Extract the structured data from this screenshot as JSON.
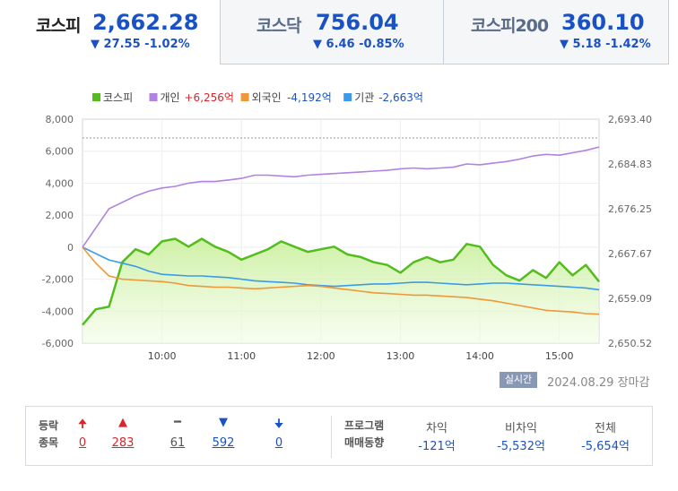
{
  "tabs": [
    {
      "name": "코스피",
      "value": "2,662.28",
      "change": "▼ 27.55 -1.02%"
    },
    {
      "name": "코스닥",
      "value": "756.04",
      "change": "▼ 6.46 -0.85%"
    },
    {
      "name": "코스피200",
      "value": "360.10",
      "change": "▼ 5.18 -1.42%"
    }
  ],
  "colors": {
    "kospi": "#52bd1c",
    "individual": "#b083e0",
    "foreign": "#f0973a",
    "institution": "#3b9be8",
    "down": "#1a52c4",
    "up": "#d9262b"
  },
  "chart_data": {
    "type": "line",
    "x_ticks": [
      "10:00",
      "11:00",
      "12:00",
      "13:00",
      "14:00",
      "15:00"
    ],
    "x_range": [
      "09:00",
      "15:30"
    ],
    "y_left_ticks": [
      "8,000",
      "6,000",
      "4,000",
      "2,000",
      "0",
      "-2,000",
      "-4,000",
      "-6,000"
    ],
    "y_left_range": [
      -6000,
      8000
    ],
    "y_right_ticks": [
      "2,693.40",
      "2,684.83",
      "2,676.25",
      "2,667.67",
      "2,659.09",
      "2,650.52"
    ],
    "y_right_range": [
      2650.52,
      2693.4
    ],
    "reference_line_right": 2689.8,
    "grid": true,
    "legend": [
      {
        "label": "코스피",
        "color": "#52bd1c"
      },
      {
        "label": "개인",
        "value": "+6,256억",
        "value_color": "#d9262b",
        "color": "#b083e0"
      },
      {
        "label": "외국인",
        "value": "-4,192억",
        "value_color": "#1a52c4",
        "color": "#f0973a"
      },
      {
        "label": "기관",
        "value": "-2,663억",
        "value_color": "#1a52c4",
        "color": "#3b9be8"
      }
    ],
    "series": [
      {
        "name": "코스피",
        "axis": "right",
        "x": [
          "09:00",
          "09:10",
          "09:20",
          "09:30",
          "09:40",
          "09:50",
          "10:00",
          "10:10",
          "10:20",
          "10:30",
          "10:40",
          "10:50",
          "11:00",
          "11:10",
          "11:20",
          "11:30",
          "11:40",
          "11:50",
          "12:00",
          "12:10",
          "12:20",
          "12:30",
          "12:40",
          "12:50",
          "13:00",
          "13:10",
          "13:20",
          "13:30",
          "13:40",
          "13:50",
          "14:00",
          "14:10",
          "14:20",
          "14:30",
          "14:40",
          "14:50",
          "15:00",
          "15:10",
          "15:20",
          "15:30"
        ],
        "values": [
          2654.0,
          2657.0,
          2657.5,
          2666.0,
          2668.5,
          2667.5,
          2670.0,
          2670.5,
          2669.0,
          2670.5,
          2669.0,
          2668.0,
          2666.5,
          2667.5,
          2668.5,
          2670.0,
          2669.0,
          2668.0,
          2668.5,
          2669.0,
          2667.5,
          2667.0,
          2666.0,
          2665.5,
          2664.0,
          2666.0,
          2667.0,
          2666.0,
          2666.5,
          2669.5,
          2669.0,
          2665.5,
          2663.5,
          2662.5,
          2664.5,
          2663.0,
          2666.0,
          2663.5,
          2665.5,
          2662.3
        ]
      },
      {
        "name": "개인",
        "axis": "left",
        "x": [
          "09:00",
          "09:10",
          "09:20",
          "09:30",
          "09:40",
          "09:50",
          "10:00",
          "10:10",
          "10:20",
          "10:30",
          "10:40",
          "10:50",
          "11:00",
          "11:10",
          "11:20",
          "11:30",
          "11:40",
          "11:50",
          "12:00",
          "12:10",
          "12:20",
          "12:30",
          "12:40",
          "12:50",
          "13:00",
          "13:10",
          "13:20",
          "13:30",
          "13:40",
          "13:50",
          "14:00",
          "14:10",
          "14:20",
          "14:30",
          "14:40",
          "14:50",
          "15:00",
          "15:10",
          "15:20",
          "15:30"
        ],
        "values": [
          0,
          1200,
          2400,
          2800,
          3200,
          3500,
          3700,
          3800,
          4000,
          4100,
          4100,
          4200,
          4300,
          4500,
          4500,
          4450,
          4400,
          4500,
          4550,
          4600,
          4650,
          4700,
          4750,
          4800,
          4900,
          4950,
          4900,
          4950,
          5000,
          5200,
          5150,
          5250,
          5350,
          5500,
          5700,
          5800,
          5750,
          5900,
          6050,
          6256
        ]
      },
      {
        "name": "외국인",
        "axis": "left",
        "x": [
          "09:00",
          "09:10",
          "09:20",
          "09:30",
          "09:40",
          "09:50",
          "10:00",
          "10:10",
          "10:20",
          "10:30",
          "10:40",
          "10:50",
          "11:00",
          "11:10",
          "11:20",
          "11:30",
          "11:40",
          "11:50",
          "12:00",
          "12:10",
          "12:20",
          "12:30",
          "12:40",
          "12:50",
          "13:00",
          "13:10",
          "13:20",
          "13:30",
          "13:40",
          "13:50",
          "14:00",
          "14:10",
          "14:20",
          "14:30",
          "14:40",
          "14:50",
          "15:00",
          "15:10",
          "15:20",
          "15:30"
        ],
        "values": [
          0,
          -1000,
          -1800,
          -2000,
          -2050,
          -2100,
          -2150,
          -2250,
          -2400,
          -2450,
          -2500,
          -2500,
          -2550,
          -2600,
          -2550,
          -2500,
          -2450,
          -2400,
          -2450,
          -2550,
          -2650,
          -2750,
          -2850,
          -2900,
          -2950,
          -3000,
          -3000,
          -3050,
          -3100,
          -3150,
          -3250,
          -3350,
          -3500,
          -3650,
          -3800,
          -3950,
          -4000,
          -4050,
          -4150,
          -4192
        ]
      },
      {
        "name": "기관",
        "axis": "left",
        "x": [
          "09:00",
          "09:10",
          "09:20",
          "09:30",
          "09:40",
          "09:50",
          "10:00",
          "10:10",
          "10:20",
          "10:30",
          "10:40",
          "10:50",
          "11:00",
          "11:10",
          "11:20",
          "11:30",
          "11:40",
          "11:50",
          "12:00",
          "12:10",
          "12:20",
          "12:30",
          "12:40",
          "12:50",
          "13:00",
          "13:10",
          "13:20",
          "13:30",
          "13:40",
          "13:50",
          "14:00",
          "14:10",
          "14:20",
          "14:30",
          "14:40",
          "14:50",
          "15:00",
          "15:10",
          "15:20",
          "15:30"
        ],
        "values": [
          0,
          -400,
          -800,
          -1000,
          -1200,
          -1500,
          -1700,
          -1750,
          -1800,
          -1800,
          -1850,
          -1900,
          -2000,
          -2100,
          -2150,
          -2200,
          -2250,
          -2350,
          -2400,
          -2450,
          -2400,
          -2350,
          -2300,
          -2300,
          -2250,
          -2200,
          -2200,
          -2250,
          -2300,
          -2350,
          -2300,
          -2250,
          -2250,
          -2300,
          -2350,
          -2400,
          -2450,
          -2500,
          -2550,
          -2663
        ]
      }
    ]
  },
  "footer": {
    "badge": "실시간",
    "date": "2024.08.29  장마감"
  },
  "stats": {
    "label1": "등락",
    "label2": "종목",
    "counts": [
      {
        "icon": "🠉",
        "value": "0",
        "color": "#d9262b"
      },
      {
        "icon": "▲",
        "value": "283",
        "color": "#d9262b"
      },
      {
        "icon": "━",
        "value": "61",
        "color": "#555555"
      },
      {
        "icon": "▼",
        "value": "592",
        "color": "#1a52c4"
      },
      {
        "icon": "🠋",
        "value": "0",
        "color": "#1a52c4"
      }
    ],
    "program_label1": "프로그램",
    "program_label2": "매매동향",
    "program": [
      {
        "header": "차익",
        "value": "-121억"
      },
      {
        "header": "비차익",
        "value": "-5,532억"
      },
      {
        "header": "전체",
        "value": "-5,654억"
      }
    ]
  }
}
